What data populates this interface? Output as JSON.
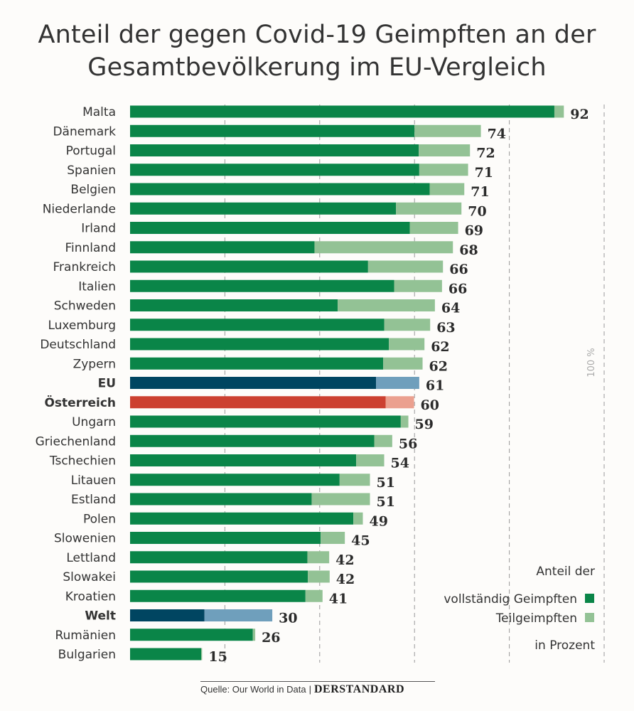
{
  "title_line1": "Anteil der gegen Covid-19 Geimpften an der",
  "title_line2": "Gesamtbevölkerung im EU-Vergleich",
  "source_label": "Quelle: Our World in Data",
  "brand": "DERSTANDARD",
  "colors": {
    "full": "#0a8548",
    "partial": "#93c295",
    "eu_full": "#004561",
    "eu_partial": "#6f9fbc",
    "at_full": "#cc4030",
    "at_partial": "#eba08f",
    "grid": "#999999",
    "text": "#2b2b2b"
  },
  "chart_data": {
    "type": "bar",
    "orientation": "horizontal",
    "stacked": true,
    "xlim": [
      0,
      100
    ],
    "gridlines": [
      20,
      40,
      60,
      80,
      100
    ],
    "gridline_label": "100 %",
    "categories": [
      "Malta",
      "Dänemark",
      "Portugal",
      "Spanien",
      "Belgien",
      "Niederlande",
      "Irland",
      "Finnland",
      "Frankreich",
      "Italien",
      "Schweden",
      "Luxemburg",
      "Deutschland",
      "Zypern",
      "EU",
      "Österreich",
      "Ungarn",
      "Griechenland",
      "Tschechien",
      "Litauen",
      "Estland",
      "Polen",
      "Slowenien",
      "Lettland",
      "Slowakei",
      "Kroatien",
      "Welt",
      "Rumänien",
      "Bulgarien"
    ],
    "highlight": {
      "EU": "eu",
      "Welt": "eu",
      "Österreich": "at"
    },
    "bold_categories": [
      "EU",
      "Österreich",
      "Welt"
    ],
    "series": [
      {
        "name": "vollständig Geimpften",
        "values": [
          89.5,
          60,
          60.9,
          61,
          63.2,
          56.1,
          59,
          38.9,
          50.2,
          55.7,
          43.8,
          53.6,
          54.6,
          53.4,
          51.9,
          53.9,
          57.1,
          51.5,
          47.7,
          44.2,
          38.3,
          47.1,
          40.2,
          37.4,
          37.5,
          37,
          15.7,
          25.9,
          15
        ]
      },
      {
        "name": "Teilgeimpften",
        "values": [
          2,
          14,
          10.8,
          10.3,
          7.3,
          13.8,
          10.2,
          29.2,
          15.8,
          10.1,
          20.5,
          9.7,
          7.5,
          8.3,
          9.1,
          6,
          1.6,
          3.8,
          5.9,
          6.4,
          12.3,
          2,
          5.1,
          4.6,
          4.6,
          3.6,
          14.3,
          0.5,
          0.2
        ]
      }
    ],
    "totals": [
      "92",
      "74",
      "72",
      "71",
      "71",
      "70",
      "69",
      "68",
      "66",
      "66",
      "64",
      "63",
      "62",
      "62",
      "61",
      "60",
      "59",
      "56",
      "54",
      "51",
      "51",
      "49",
      "45",
      "42",
      "42",
      "41",
      "30",
      "26",
      "15"
    ],
    "legend_title": "Anteil der",
    "legend_full": "vollständig Geimpften",
    "legend_partial": "Teilgeimpften",
    "legend_unit": "in Prozent"
  }
}
